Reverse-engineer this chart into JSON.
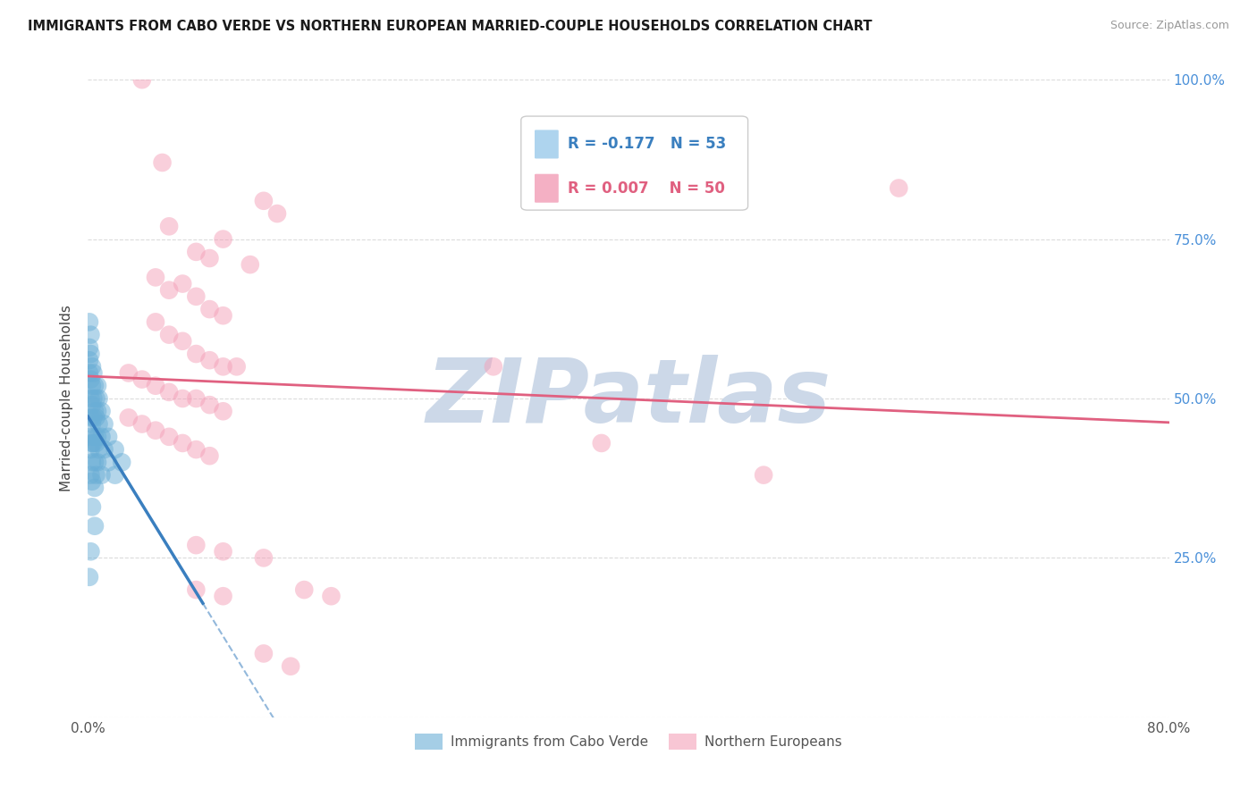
{
  "title": "IMMIGRANTS FROM CABO VERDE VS NORTHERN EUROPEAN MARRIED-COUPLE HOUSEHOLDS CORRELATION CHART",
  "source": "Source: ZipAtlas.com",
  "ylabel": "Married-couple Households",
  "xlim": [
    0,
    0.8
  ],
  "ylim": [
    0,
    1.0
  ],
  "cabo_verde_R": -0.177,
  "cabo_verde_N": 53,
  "northern_european_R": 0.007,
  "northern_european_N": 50,
  "cabo_verde_color": "#6aaed6",
  "northern_european_color": "#f4a0b8",
  "cabo_verde_line_color": "#3a7fbf",
  "northern_european_line_color": "#e06080",
  "cabo_verde_scatter": [
    [
      0.001,
      0.62
    ],
    [
      0.001,
      0.58
    ],
    [
      0.001,
      0.56
    ],
    [
      0.001,
      0.54
    ],
    [
      0.002,
      0.6
    ],
    [
      0.002,
      0.57
    ],
    [
      0.002,
      0.53
    ],
    [
      0.002,
      0.5
    ],
    [
      0.002,
      0.47
    ],
    [
      0.002,
      0.44
    ],
    [
      0.002,
      0.42
    ],
    [
      0.002,
      0.38
    ],
    [
      0.003,
      0.55
    ],
    [
      0.003,
      0.52
    ],
    [
      0.003,
      0.49
    ],
    [
      0.003,
      0.46
    ],
    [
      0.003,
      0.43
    ],
    [
      0.003,
      0.4
    ],
    [
      0.003,
      0.37
    ],
    [
      0.003,
      0.33
    ],
    [
      0.004,
      0.54
    ],
    [
      0.004,
      0.5
    ],
    [
      0.004,
      0.47
    ],
    [
      0.004,
      0.43
    ],
    [
      0.005,
      0.52
    ],
    [
      0.005,
      0.48
    ],
    [
      0.005,
      0.44
    ],
    [
      0.005,
      0.4
    ],
    [
      0.005,
      0.36
    ],
    [
      0.005,
      0.3
    ],
    [
      0.006,
      0.5
    ],
    [
      0.006,
      0.47
    ],
    [
      0.006,
      0.43
    ],
    [
      0.006,
      0.38
    ],
    [
      0.007,
      0.52
    ],
    [
      0.007,
      0.48
    ],
    [
      0.007,
      0.44
    ],
    [
      0.007,
      0.4
    ],
    [
      0.008,
      0.5
    ],
    [
      0.008,
      0.46
    ],
    [
      0.008,
      0.42
    ],
    [
      0.01,
      0.48
    ],
    [
      0.01,
      0.44
    ],
    [
      0.01,
      0.38
    ],
    [
      0.012,
      0.46
    ],
    [
      0.012,
      0.42
    ],
    [
      0.015,
      0.44
    ],
    [
      0.015,
      0.4
    ],
    [
      0.02,
      0.42
    ],
    [
      0.02,
      0.38
    ],
    [
      0.025,
      0.4
    ],
    [
      0.001,
      0.22
    ],
    [
      0.002,
      0.26
    ]
  ],
  "northern_european_scatter": [
    [
      0.04,
      1.0
    ],
    [
      0.055,
      0.87
    ],
    [
      0.13,
      0.81
    ],
    [
      0.14,
      0.79
    ],
    [
      0.06,
      0.77
    ],
    [
      0.1,
      0.75
    ],
    [
      0.08,
      0.73
    ],
    [
      0.09,
      0.72
    ],
    [
      0.05,
      0.69
    ],
    [
      0.12,
      0.71
    ],
    [
      0.06,
      0.67
    ],
    [
      0.07,
      0.68
    ],
    [
      0.08,
      0.66
    ],
    [
      0.09,
      0.64
    ],
    [
      0.1,
      0.63
    ],
    [
      0.05,
      0.62
    ],
    [
      0.06,
      0.6
    ],
    [
      0.07,
      0.59
    ],
    [
      0.08,
      0.57
    ],
    [
      0.09,
      0.56
    ],
    [
      0.1,
      0.55
    ],
    [
      0.11,
      0.55
    ],
    [
      0.03,
      0.54
    ],
    [
      0.04,
      0.53
    ],
    [
      0.05,
      0.52
    ],
    [
      0.06,
      0.51
    ],
    [
      0.07,
      0.5
    ],
    [
      0.08,
      0.5
    ],
    [
      0.09,
      0.49
    ],
    [
      0.1,
      0.48
    ],
    [
      0.03,
      0.47
    ],
    [
      0.04,
      0.46
    ],
    [
      0.05,
      0.45
    ],
    [
      0.06,
      0.44
    ],
    [
      0.07,
      0.43
    ],
    [
      0.08,
      0.42
    ],
    [
      0.09,
      0.41
    ],
    [
      0.38,
      0.43
    ],
    [
      0.5,
      0.38
    ],
    [
      0.6,
      0.83
    ],
    [
      0.08,
      0.27
    ],
    [
      0.1,
      0.26
    ],
    [
      0.13,
      0.25
    ],
    [
      0.08,
      0.2
    ],
    [
      0.1,
      0.19
    ],
    [
      0.13,
      0.1
    ],
    [
      0.15,
      0.08
    ],
    [
      0.16,
      0.2
    ],
    [
      0.18,
      0.19
    ],
    [
      0.3,
      0.55
    ]
  ],
  "background_color": "#ffffff",
  "grid_color": "#d8d8d8",
  "watermark_text": "ZIPatlas",
  "watermark_color": "#ccd8e8",
  "legend_box_color_cabo": "#aed4ee",
  "legend_box_color_northern": "#f4b0c4"
}
